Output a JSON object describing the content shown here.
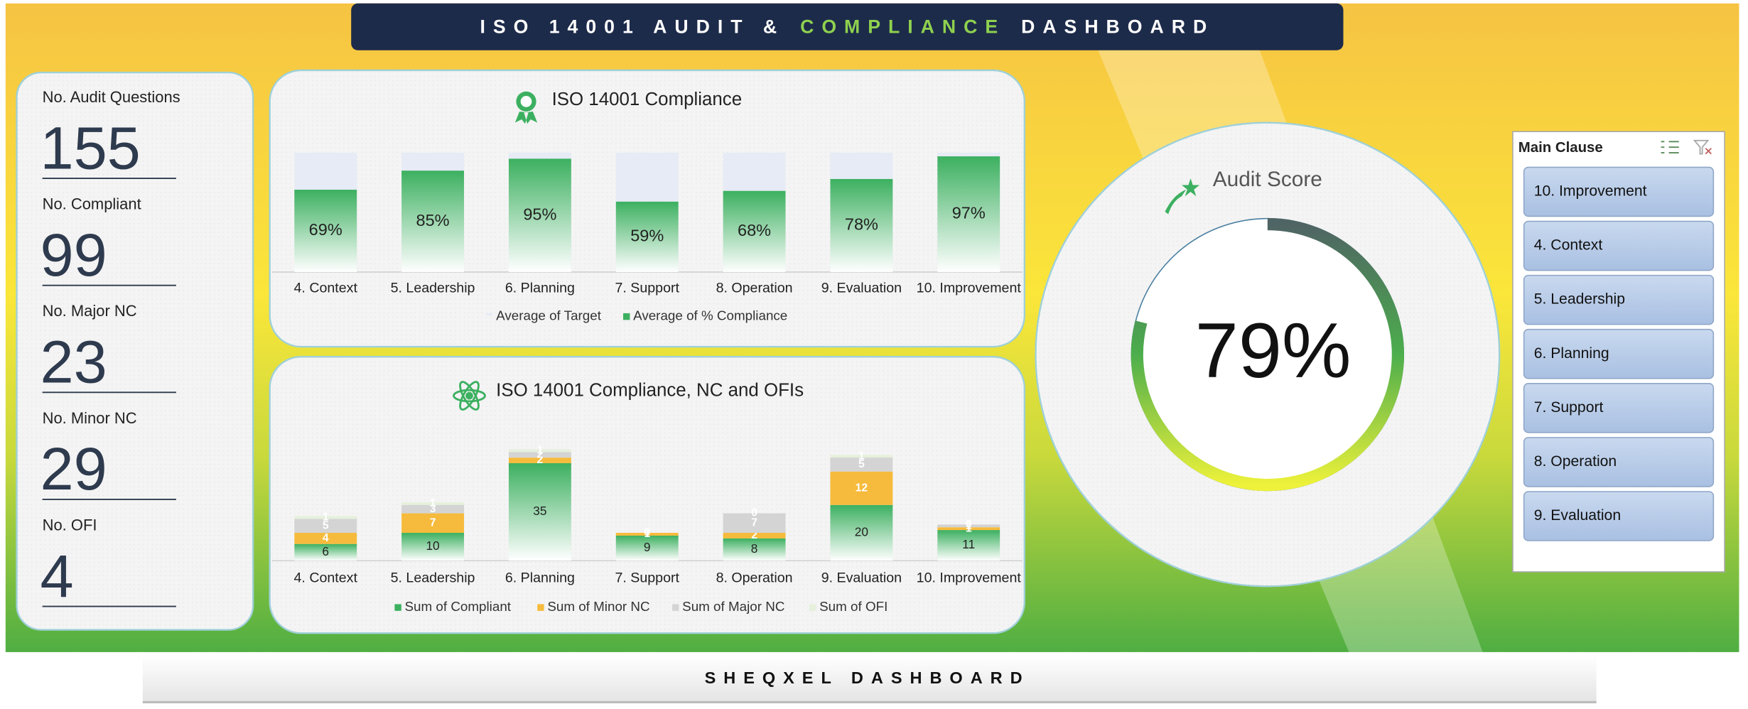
{
  "header": {
    "title_parts": [
      "ISO 14001 AUDIT &",
      "COMPLIANCE",
      "DASHBOARD"
    ]
  },
  "kpis": [
    {
      "label": "No. Audit Questions",
      "value": 155
    },
    {
      "label": "No. Compliant",
      "value": 99
    },
    {
      "label": "No. Major NC",
      "value": 23
    },
    {
      "label": "No. Minor NC",
      "value": 29
    },
    {
      "label": "No. OFI",
      "value": 4
    }
  ],
  "chart_data": [
    {
      "type": "bar",
      "title": "ISO 14001 Compliance",
      "categories": [
        "4. Context",
        "5. Leadership",
        "6. Planning",
        "7. Support",
        "8. Operation",
        "9. Evaluation",
        "10. Improvement"
      ],
      "series": [
        {
          "name": "Average of Target",
          "color": "#e6ebf5",
          "values": [
            100,
            100,
            100,
            100,
            100,
            100,
            100
          ]
        },
        {
          "name": "Average of % Compliance",
          "color": "#3cb060",
          "values": [
            69,
            85,
            95,
            59,
            68,
            78,
            97
          ],
          "value_labels": [
            "69%",
            "85%",
            "95%",
            "59%",
            "68%",
            "78%",
            "97%"
          ]
        }
      ],
      "ylim": [
        0,
        100
      ]
    },
    {
      "type": "stacked_bar",
      "title": "ISO 14001 Compliance, NC and OFIs",
      "categories": [
        "4. Context",
        "5. Leadership",
        "6. Planning",
        "7. Support",
        "8. Operation",
        "9. Evaluation",
        "10. Improvement"
      ],
      "series": [
        {
          "name": "Sum of Compliant",
          "color": "#3cb060",
          "values": [
            6,
            10,
            35,
            9,
            8,
            20,
            11
          ]
        },
        {
          "name": "Sum of Minor NC",
          "color": "#f6bb3c",
          "values": [
            4,
            7,
            2,
            1,
            2,
            12,
            1
          ]
        },
        {
          "name": "Sum of Major NC",
          "color": "#d4d4d4",
          "values": [
            5,
            3,
            2,
            0,
            7,
            5,
            1
          ]
        },
        {
          "name": "Sum of OFI",
          "color": "#e6f0dc",
          "values": [
            1,
            1,
            1,
            0,
            0,
            1,
            0
          ]
        }
      ],
      "ylim": [
        0,
        42
      ]
    },
    {
      "type": "gauge",
      "title": "Audit Score",
      "values": [
        79
      ],
      "value_labels": [
        "79%"
      ],
      "ylim": [
        0,
        100
      ]
    }
  ],
  "slicer": {
    "title": "Main Clause",
    "items": [
      "10. Improvement",
      "4. Context",
      "5. Leadership",
      "6. Planning",
      "7. Support",
      "8. Operation",
      "9. Evaluation"
    ]
  },
  "footer": {
    "title": "SHEQXEL DASHBOARD"
  }
}
